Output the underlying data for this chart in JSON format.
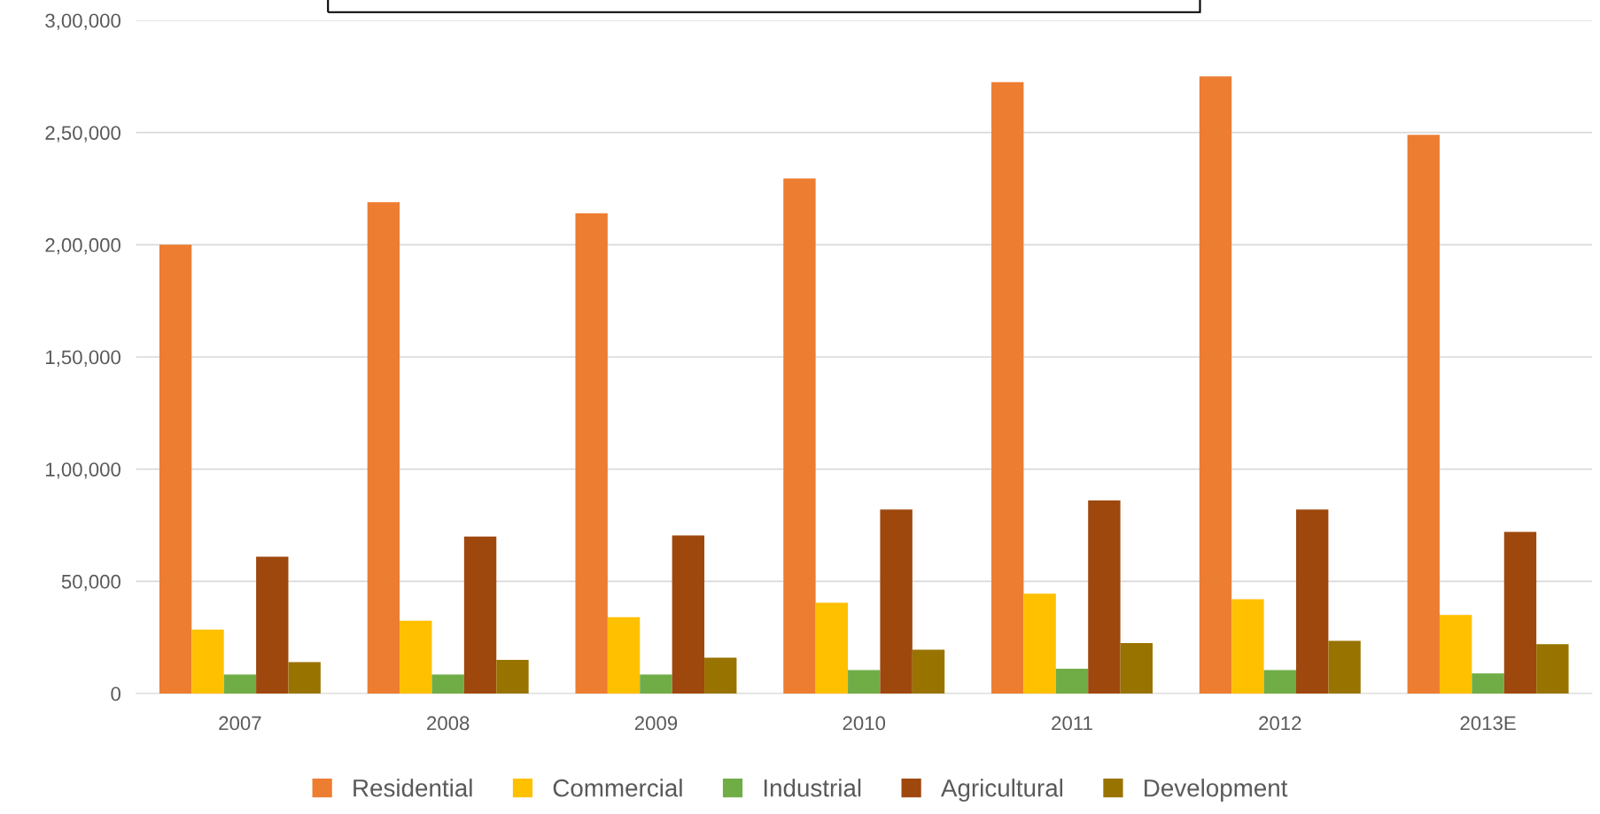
{
  "chart_data": {
    "type": "bar",
    "categories": [
      "2007",
      "2008",
      "2009",
      "2010",
      "2011",
      "2012",
      "2013E"
    ],
    "series": [
      {
        "name": "Residential",
        "color": "#ed7d31",
        "values": [
          200000,
          219000,
          214000,
          229500,
          272500,
          275000,
          249000
        ]
      },
      {
        "name": "Commercial",
        "color": "#ffc000",
        "values": [
          28500,
          32500,
          34000,
          40500,
          44500,
          42000,
          35000
        ]
      },
      {
        "name": "Industrial",
        "color": "#70ad47",
        "values": [
          8500,
          8500,
          8500,
          10500,
          11000,
          10500,
          9000
        ]
      },
      {
        "name": "Agricultural",
        "color": "#9e480e",
        "values": [
          61000,
          70000,
          70500,
          82000,
          86000,
          82000,
          72000
        ]
      },
      {
        "name": "Development",
        "color": "#997300",
        "values": [
          14000,
          15000,
          16000,
          19500,
          22500,
          23500,
          22000
        ]
      }
    ],
    "ylim": [
      0,
      300000
    ],
    "yticks": [
      0,
      {
        "value": 50000,
        "label": "50,000"
      },
      {
        "value": 100000,
        "label": "1,00,000"
      },
      {
        "value": 150000,
        "label": "1,50,000"
      },
      {
        "value": 200000,
        "label": "2,00,000"
      },
      {
        "value": 250000,
        "label": "2,50,000"
      },
      {
        "value": 300000,
        "label": "3,00,000"
      }
    ],
    "grid": "y",
    "legend": "bottom"
  }
}
